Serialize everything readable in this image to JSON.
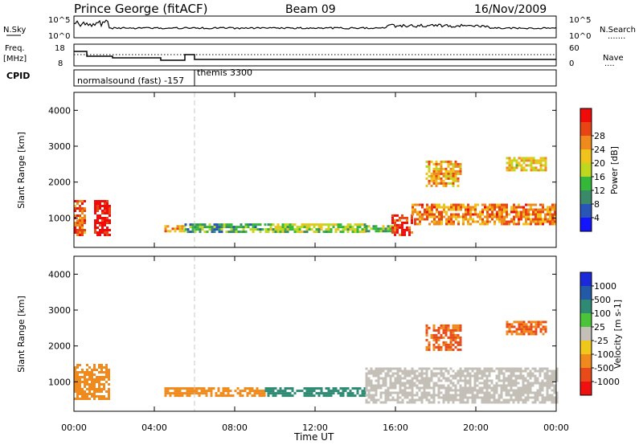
{
  "header": {
    "station": "Prince George (fitACF)",
    "beam": "Beam 09",
    "date": "16/Nov/2009"
  },
  "noise_panel": {
    "left_label": "N.Sky",
    "left_ticks": [
      "10^5",
      "10^0"
    ],
    "right_ticks": [
      "10^5",
      "10^0"
    ],
    "right_label": "N.Search",
    "right_legend": "......."
  },
  "freq_panel": {
    "left_label_line1": "Freq.",
    "left_label_line2": "[MHz]",
    "left_ticks": [
      "18",
      "8"
    ],
    "right_ticks": [
      "60",
      "0"
    ],
    "right_label": "Nave",
    "right_legend": "...."
  },
  "cpid": {
    "label": "CPID",
    "mode1": "normalsound (fast) -157",
    "mode2": "themis 3300"
  },
  "time_axis": {
    "label": "Time UT",
    "ticks": [
      "00:00",
      "04:00",
      "08:00",
      "12:00",
      "16:00",
      "20:00",
      "00:00"
    ]
  },
  "y_axis": {
    "label": "Slant Range [km]",
    "ticks": [
      "1000",
      "2000",
      "3000",
      "4000"
    ]
  },
  "power_scale": {
    "label": "Power [dB]",
    "ticks": [
      "4",
      "8",
      "12",
      "16",
      "20",
      "24",
      "28"
    ],
    "colors": [
      "#1414ff",
      "#2a55b8",
      "#3a8a6a",
      "#34b83a",
      "#bdd81e",
      "#f0c21c",
      "#f08a1c",
      "#e84414",
      "#f00a0a"
    ]
  },
  "velocity_scale": {
    "label": "Velocity [m s-1]",
    "ticks": [
      "1000",
      "500",
      "100",
      "25",
      "-25",
      "-100",
      "-500",
      "-1000"
    ],
    "colors": [
      "#1a2ad8",
      "#235aa8",
      "#2f8a74",
      "#4cc43a",
      "#c4c0b8",
      "#f0c81c",
      "#f08a1c",
      "#e84a1a",
      "#f01010"
    ]
  },
  "chart_data": [
    {
      "type": "heatmap",
      "title": "Power",
      "xlabel": "Time UT",
      "ylabel": "Slant Range [km]",
      "xlim": [
        "00:00",
        "24:00"
      ],
      "ylim": [
        180,
        4500
      ],
      "colorbar": "Power [dB]",
      "clim": [
        0,
        30
      ],
      "echo_regions": [
        {
          "t0": 0.0,
          "t1": 0.5,
          "r0": 500,
          "r1": 1500,
          "value": 24
        },
        {
          "t0": 1.0,
          "t1": 1.8,
          "r0": 550,
          "r1": 1500,
          "value": 29
        },
        {
          "t0": 4.5,
          "t1": 5.5,
          "r0": 650,
          "r1": 800,
          "value": 20
        },
        {
          "t0": 5.5,
          "t1": 9.5,
          "r0": 600,
          "r1": 850,
          "value": 10
        },
        {
          "t0": 9.5,
          "t1": 14.5,
          "r0": 600,
          "r1": 850,
          "value": 14
        },
        {
          "t0": 14.5,
          "t1": 16.0,
          "r0": 600,
          "r1": 800,
          "value": 12
        },
        {
          "t0": 15.8,
          "t1": 16.8,
          "r0": 500,
          "r1": 1100,
          "value": 27
        },
        {
          "t0": 16.8,
          "t1": 24.0,
          "r0": 800,
          "r1": 1400,
          "value": 22
        },
        {
          "t0": 17.5,
          "t1": 19.3,
          "r0": 1900,
          "r1": 2600,
          "value": 20
        },
        {
          "t0": 21.5,
          "t1": 23.5,
          "r0": 2300,
          "r1": 2700,
          "value": 18
        }
      ]
    },
    {
      "type": "heatmap",
      "title": "Velocity",
      "xlabel": "Time UT",
      "ylabel": "Slant Range [km]",
      "xlim": [
        "00:00",
        "24:00"
      ],
      "ylim": [
        180,
        4500
      ],
      "colorbar": "Velocity [m s-1]",
      "clim": [
        -1000,
        1000
      ],
      "echo_regions": [
        {
          "t0": 0.0,
          "t1": 1.8,
          "r0": 500,
          "r1": 1500,
          "value": -100
        },
        {
          "t0": 4.5,
          "t1": 9.5,
          "r0": 600,
          "r1": 850,
          "value": -100
        },
        {
          "t0": 9.5,
          "t1": 14.5,
          "r0": 600,
          "r1": 850,
          "value": 100
        },
        {
          "t0": 14.5,
          "t1": 24.0,
          "r0": 400,
          "r1": 1400,
          "value": 0
        },
        {
          "t0": 17.5,
          "t1": 19.3,
          "r0": 1900,
          "r1": 2600,
          "value": -300
        },
        {
          "t0": 21.5,
          "t1": 23.5,
          "r0": 2300,
          "r1": 2700,
          "value": -300
        }
      ]
    }
  ]
}
